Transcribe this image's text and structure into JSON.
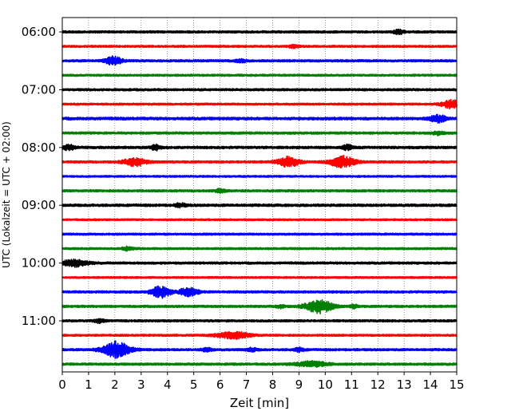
{
  "chart_data": {
    "type": "line",
    "subtype": "helicorder",
    "xlabel": "Zeit  [min]",
    "ylabel": "UTC (Lokalzeit = UTC + 02:00)",
    "xlim": [
      0,
      15
    ],
    "x_ticks": [
      0,
      1,
      2,
      3,
      4,
      5,
      6,
      7,
      8,
      9,
      10,
      11,
      12,
      13,
      14,
      15
    ],
    "x_grid": "dotted",
    "trace_interval_minutes": 15,
    "trace_colors": [
      "#000000",
      "#ff0000",
      "#0000ff",
      "#008000"
    ],
    "y_tick_labels": [
      {
        "label": "06:00",
        "trace_index": 0
      },
      {
        "label": "07:00",
        "trace_index": 4
      },
      {
        "label": "08:00",
        "trace_index": 8
      },
      {
        "label": "09:00",
        "trace_index": 12
      },
      {
        "label": "10:00",
        "trace_index": 16
      },
      {
        "label": "11:00",
        "trace_index": 20
      }
    ],
    "series": [
      {
        "start": "06:00",
        "amplitude": 1.0,
        "events": [
          {
            "t": 12.8,
            "amp": 2.5,
            "dur": 0.2
          }
        ]
      },
      {
        "start": "06:15",
        "amplitude": 0.9,
        "events": [
          {
            "t": 8.8,
            "amp": 1.5,
            "dur": 0.2
          }
        ]
      },
      {
        "start": "06:30",
        "amplitude": 1.0,
        "events": [
          {
            "t": 1.95,
            "amp": 5,
            "dur": 0.3
          },
          {
            "t": 6.8,
            "amp": 1.5,
            "dur": 0.2
          }
        ]
      },
      {
        "start": "06:45",
        "amplitude": 0.9,
        "events": []
      },
      {
        "start": "07:00",
        "amplitude": 1.0,
        "events": []
      },
      {
        "start": "07:15",
        "amplitude": 0.9,
        "events": [
          {
            "t": 14.8,
            "amp": 5,
            "dur": 0.35
          }
        ]
      },
      {
        "start": "07:30",
        "amplitude": 1.2,
        "events": [
          {
            "t": 14.3,
            "amp": 4,
            "dur": 0.3
          }
        ]
      },
      {
        "start": "07:45",
        "amplitude": 1.0,
        "events": [
          {
            "t": 14.3,
            "amp": 2,
            "dur": 0.2
          }
        ]
      },
      {
        "start": "08:00",
        "amplitude": 1.1,
        "events": [
          {
            "t": 0.25,
            "amp": 3,
            "dur": 0.2
          },
          {
            "t": 3.55,
            "amp": 3,
            "dur": 0.15
          },
          {
            "t": 10.85,
            "amp": 3,
            "dur": 0.2
          }
        ]
      },
      {
        "start": "08:15",
        "amplitude": 1.0,
        "events": [
          {
            "t": 2.75,
            "amp": 5,
            "dur": 0.4
          },
          {
            "t": 8.6,
            "amp": 6,
            "dur": 0.4
          },
          {
            "t": 10.65,
            "amp": 7,
            "dur": 0.45
          }
        ]
      },
      {
        "start": "08:30",
        "amplitude": 0.8,
        "events": []
      },
      {
        "start": "08:45",
        "amplitude": 1.0,
        "events": [
          {
            "t": 6.0,
            "amp": 2,
            "dur": 0.2
          }
        ]
      },
      {
        "start": "09:00",
        "amplitude": 1.1,
        "events": [
          {
            "t": 4.5,
            "amp": 2,
            "dur": 0.2
          }
        ]
      },
      {
        "start": "09:15",
        "amplitude": 0.8,
        "events": []
      },
      {
        "start": "09:30",
        "amplitude": 0.9,
        "events": []
      },
      {
        "start": "09:45",
        "amplitude": 0.9,
        "events": [
          {
            "t": 2.5,
            "amp": 2,
            "dur": 0.2
          }
        ]
      },
      {
        "start": "10:00",
        "amplitude": 1.0,
        "events": [
          {
            "t": 0.5,
            "amp": 4,
            "dur": 0.5
          }
        ]
      },
      {
        "start": "10:15",
        "amplitude": 0.8,
        "events": []
      },
      {
        "start": "10:30",
        "amplitude": 1.0,
        "events": [
          {
            "t": 3.75,
            "amp": 7,
            "dur": 0.35
          },
          {
            "t": 4.8,
            "amp": 5,
            "dur": 0.35
          }
        ]
      },
      {
        "start": "10:45",
        "amplitude": 1.0,
        "events": [
          {
            "t": 8.3,
            "amp": 2,
            "dur": 0.15
          },
          {
            "t": 9.75,
            "amp": 8,
            "dur": 0.5
          },
          {
            "t": 11.1,
            "amp": 2,
            "dur": 0.15
          }
        ]
      },
      {
        "start": "11:00",
        "amplitude": 1.0,
        "events": [
          {
            "t": 1.4,
            "amp": 2,
            "dur": 0.2
          }
        ]
      },
      {
        "start": "11:15",
        "amplitude": 0.9,
        "events": [
          {
            "t": 6.5,
            "amp": 4,
            "dur": 0.6
          }
        ]
      },
      {
        "start": "11:30",
        "amplitude": 1.0,
        "events": [
          {
            "t": 2.05,
            "amp": 10,
            "dur": 0.5
          },
          {
            "t": 5.5,
            "amp": 2,
            "dur": 0.2
          },
          {
            "t": 7.2,
            "amp": 2,
            "dur": 0.2
          },
          {
            "t": 9.0,
            "amp": 2,
            "dur": 0.2
          }
        ]
      },
      {
        "start": "11:45",
        "amplitude": 1.0,
        "events": [
          {
            "t": 9.5,
            "amp": 3,
            "dur": 0.6
          }
        ]
      }
    ]
  }
}
